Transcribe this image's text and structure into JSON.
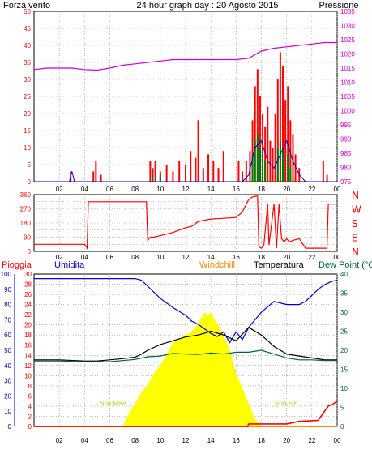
{
  "colors": {
    "wind": "#ff0000",
    "gust": "#007700",
    "avgwind": "#0000cc",
    "pressure": "#cc00cc",
    "rain": "#ff0000",
    "humidity": "#0000cc",
    "windchill": "#ff8800",
    "temperature": "#000000",
    "dewpoint": "#006633",
    "sun": "#ffff00",
    "axis_left": "#0000aa",
    "axis_right": "#cc00cc",
    "grid": "#999999"
  },
  "header": {
    "wind_label": "Forza vento",
    "title": "24 hour graph day : 20 Agosto 2015",
    "pressure_label": "Pressione"
  },
  "legend": {
    "rain": "Pioggia",
    "humidity": "Umidita",
    "windchill": "Windchill",
    "temperature": "Temperatura",
    "dewpoint": "Dew Point (°C"
  },
  "annotations": {
    "sunrise": "Sun Rise",
    "sunset": "Sun Set"
  },
  "x_ticks": [
    "02",
    "04",
    "06",
    "08",
    "10",
    "12",
    "14",
    "16",
    "18",
    "20",
    "22",
    "00"
  ],
  "direction_labels": [
    "N",
    "W",
    "S",
    "E",
    "N"
  ],
  "chart_data": [
    {
      "type": "line",
      "title": "24 hour graph day : 20 Agosto 2015",
      "xlabel": "",
      "ylabel": "Forza vento",
      "x_ticks": [
        "02",
        "04",
        "06",
        "08",
        "10",
        "12",
        "14",
        "16",
        "18",
        "20",
        "22",
        "00"
      ],
      "left_axis": {
        "ticks": [
          0,
          5,
          10,
          15,
          20,
          25,
          30,
          35,
          40,
          45,
          50
        ],
        "ylim": [
          0,
          50
        ]
      },
      "right_axis": {
        "label": "Pressione",
        "ticks": [
          975,
          980,
          985,
          990,
          995,
          1000,
          1005,
          1010,
          1015,
          1020,
          1025,
          1030,
          1035
        ],
        "ylim": [
          975,
          1035
        ]
      },
      "series": [
        {
          "name": "Pressione",
          "axis": "right",
          "x": [
            0,
            1,
            2,
            3,
            4,
            5,
            6,
            7,
            8,
            9,
            10,
            11,
            12,
            13,
            14,
            15,
            16,
            17,
            18,
            19,
            20,
            21,
            22,
            23,
            24
          ],
          "values": [
            1014.5,
            1015,
            1015,
            1015,
            1014.5,
            1014.3,
            1015,
            1016,
            1016.5,
            1017,
            1017.5,
            1018,
            1018,
            1018,
            1018,
            1018,
            1018,
            1018.5,
            1021,
            1022,
            1022.5,
            1023,
            1023.5,
            1024,
            1024
          ]
        },
        {
          "name": "Forza vento",
          "axis": "left",
          "bars": [
            [
              2.9,
              3
            ],
            [
              4.7,
              3
            ],
            [
              4.9,
              6
            ],
            [
              5.3,
              2
            ],
            [
              9.2,
              6
            ],
            [
              9.4,
              4
            ],
            [
              9.6,
              6
            ],
            [
              10.0,
              3
            ],
            [
              10.5,
              5
            ],
            [
              11.0,
              3
            ],
            [
              11.5,
              6
            ],
            [
              12.0,
              5
            ],
            [
              12.4,
              9
            ],
            [
              12.8,
              7
            ],
            [
              13.0,
              18
            ],
            [
              13.4,
              4
            ],
            [
              13.8,
              8
            ],
            [
              14.2,
              6
            ],
            [
              14.6,
              4
            ],
            [
              15.0,
              9
            ],
            [
              16.2,
              6
            ],
            [
              16.5,
              3
            ],
            [
              16.8,
              6
            ],
            [
              17.1,
              9
            ],
            [
              17.3,
              18
            ],
            [
              17.5,
              28
            ],
            [
              17.7,
              33
            ],
            [
              17.9,
              25
            ],
            [
              18.1,
              20
            ],
            [
              18.3,
              16
            ],
            [
              18.5,
              22
            ],
            [
              18.7,
              12
            ],
            [
              18.9,
              10
            ],
            [
              19.1,
              20
            ],
            [
              19.3,
              30
            ],
            [
              19.5,
              38
            ],
            [
              19.7,
              34
            ],
            [
              19.9,
              24
            ],
            [
              20.1,
              28
            ],
            [
              20.3,
              18
            ],
            [
              20.5,
              14
            ],
            [
              20.7,
              8
            ],
            [
              21.0,
              4
            ],
            [
              22.9,
              6
            ],
            [
              23.2,
              2
            ]
          ]
        },
        {
          "name": "Gust",
          "axis": "left",
          "bars": [
            [
              9.4,
              2
            ],
            [
              10.0,
              2
            ],
            [
              17.3,
              8
            ],
            [
              17.5,
              12
            ],
            [
              17.7,
              14
            ],
            [
              17.9,
              10
            ],
            [
              18.1,
              8
            ],
            [
              18.3,
              6
            ],
            [
              19.3,
              10
            ],
            [
              19.5,
              12
            ],
            [
              19.7,
              10
            ],
            [
              20.1,
              8
            ],
            [
              20.3,
              4
            ]
          ]
        },
        {
          "name": "Media",
          "axis": "left",
          "x": [
            0,
            2,
            2.8,
            3.0,
            3.2,
            4,
            16.5,
            17,
            17.5,
            18,
            18.5,
            19,
            19.5,
            20,
            20.5,
            21,
            21.5,
            22,
            24
          ],
          "values": [
            0,
            0,
            0,
            3,
            0,
            0,
            0,
            2,
            10,
            12,
            6,
            4,
            8,
            12,
            6,
            2,
            0,
            0,
            0
          ]
        }
      ]
    },
    {
      "type": "line",
      "title": "",
      "xlabel": "",
      "ylabel": "",
      "left_axis": {
        "ticks": [
          0,
          45,
          90,
          135,
          180,
          225,
          270,
          315,
          360
        ],
        "ylim": [
          0,
          360
        ]
      },
      "series": [
        {
          "name": "Direzione",
          "x": [
            0,
            1,
            2,
            3,
            4,
            4.2,
            4.3,
            5,
            6,
            7,
            8,
            8.9,
            9.0,
            9.2,
            9.5,
            10,
            11,
            12,
            12.5,
            13,
            14,
            15,
            16,
            16.5,
            17,
            17.3,
            17.6,
            17.7,
            17.8,
            18.0,
            18.2,
            18.5,
            18.6,
            19.0,
            19.2,
            19.4,
            19.6,
            19.8,
            20.0,
            20.2,
            20.5,
            21,
            21.5,
            22,
            23,
            23.2,
            23.3,
            24
          ],
          "values": [
            45,
            45,
            45,
            45,
            45,
            20,
            315,
            315,
            315,
            315,
            315,
            315,
            70,
            90,
            90,
            100,
            120,
            150,
            160,
            190,
            205,
            210,
            215,
            250,
            330,
            345,
            350,
            350,
            30,
            20,
            40,
            300,
            40,
            300,
            20,
            300,
            80,
            60,
            80,
            60,
            70,
            80,
            20,
            20,
            20,
            20,
            300,
            300
          ]
        }
      ]
    },
    {
      "type": "line",
      "title": "",
      "xlabel": "",
      "ylabel": "",
      "left_axis": {
        "label": "Umidita",
        "ticks": [
          0,
          10,
          20,
          30,
          40,
          50,
          60,
          70,
          80,
          90,
          100
        ],
        "ylim": [
          0,
          100
        ]
      },
      "rain_axis": {
        "label": "Pioggia",
        "ticks": [
          0,
          2,
          4,
          6,
          8,
          10,
          12,
          14,
          16,
          18,
          20,
          22,
          24,
          26,
          28,
          30
        ],
        "ylim": [
          0,
          30
        ]
      },
      "right_axis": {
        "label": "Dew Point (°C",
        "ticks": [
          0,
          5,
          10,
          15,
          20,
          25,
          30,
          35,
          40
        ],
        "ylim": [
          0,
          40
        ]
      },
      "series": [
        {
          "name": "Umidita",
          "axis": "left",
          "x": [
            0,
            2,
            4,
            6,
            7,
            8,
            8.5,
            9,
            10,
            11,
            12,
            12.5,
            13,
            13.5,
            14,
            14.5,
            15,
            15.5,
            16,
            16.5,
            17,
            17.5,
            18,
            19,
            20,
            21,
            21.5,
            22,
            22.5,
            23,
            23.5,
            24
          ],
          "values": [
            97,
            97,
            97,
            97,
            97,
            97,
            96,
            92,
            84,
            78,
            73,
            69,
            67,
            64,
            61,
            59,
            62,
            55,
            62,
            57,
            65,
            70,
            75,
            82,
            80,
            80,
            82,
            86,
            90,
            93,
            95,
            96
          ]
        },
        {
          "name": "Temperatura",
          "axis": "right",
          "x": [
            0,
            2,
            4,
            5,
            6,
            7,
            8,
            8.5,
            9,
            10,
            11,
            12,
            13,
            13.5,
            14,
            15,
            16,
            17,
            18,
            19,
            20,
            21,
            22,
            23,
            24
          ],
          "values": [
            17.5,
            17.5,
            17.2,
            17.2,
            17.5,
            17.8,
            18.2,
            19,
            20,
            21.5,
            22.5,
            23.5,
            24,
            24.5,
            25,
            24,
            22.5,
            26,
            24,
            21,
            19,
            18.5,
            18,
            17.5,
            17.5
          ]
        },
        {
          "name": "Dew Point",
          "axis": "right",
          "x": [
            0,
            2,
            4,
            6,
            7,
            8,
            9,
            10,
            11,
            12,
            13,
            14,
            15,
            16,
            17,
            18,
            19,
            20,
            21,
            22,
            23,
            24
          ],
          "values": [
            17.2,
            17.2,
            17,
            17,
            17.3,
            17.6,
            18.3,
            18.5,
            19.2,
            19,
            18.9,
            19.3,
            19,
            19.5,
            19.5,
            20,
            19,
            18,
            17.5,
            17.5,
            17.3,
            17.3
          ]
        },
        {
          "name": "Windchill",
          "axis": "right",
          "x": [
            0,
            8,
            12,
            14,
            14.3,
            16,
            24
          ],
          "values": [
            0,
            0,
            0,
            0,
            0,
            0,
            0
          ]
        },
        {
          "name": "Solar",
          "axis": "right",
          "x": [
            0,
            7.0,
            7.3,
            7.6,
            8,
            8.5,
            9,
            9.5,
            10,
            10.5,
            11,
            11.5,
            12,
            12.5,
            13,
            13.5,
            13.7,
            14,
            14.3,
            14.7,
            15,
            15.5,
            16,
            16.5,
            17,
            17.5,
            18,
            24
          ],
          "values": [
            0,
            0,
            2,
            4,
            6,
            9,
            11,
            14,
            16,
            19,
            22,
            23,
            24,
            25,
            27,
            30,
            29,
            30,
            28,
            26,
            24,
            20,
            14,
            10,
            6,
            2,
            0,
            0
          ]
        },
        {
          "name": "Pioggia",
          "axis": "rain",
          "x": [
            0,
            16.9,
            17.0,
            20.0,
            21.0,
            22.5,
            23,
            23.3,
            23.6,
            24
          ],
          "values": [
            0,
            0,
            0.5,
            0.5,
            1,
            1.2,
            3,
            4,
            4.3,
            5
          ]
        }
      ]
    }
  ]
}
